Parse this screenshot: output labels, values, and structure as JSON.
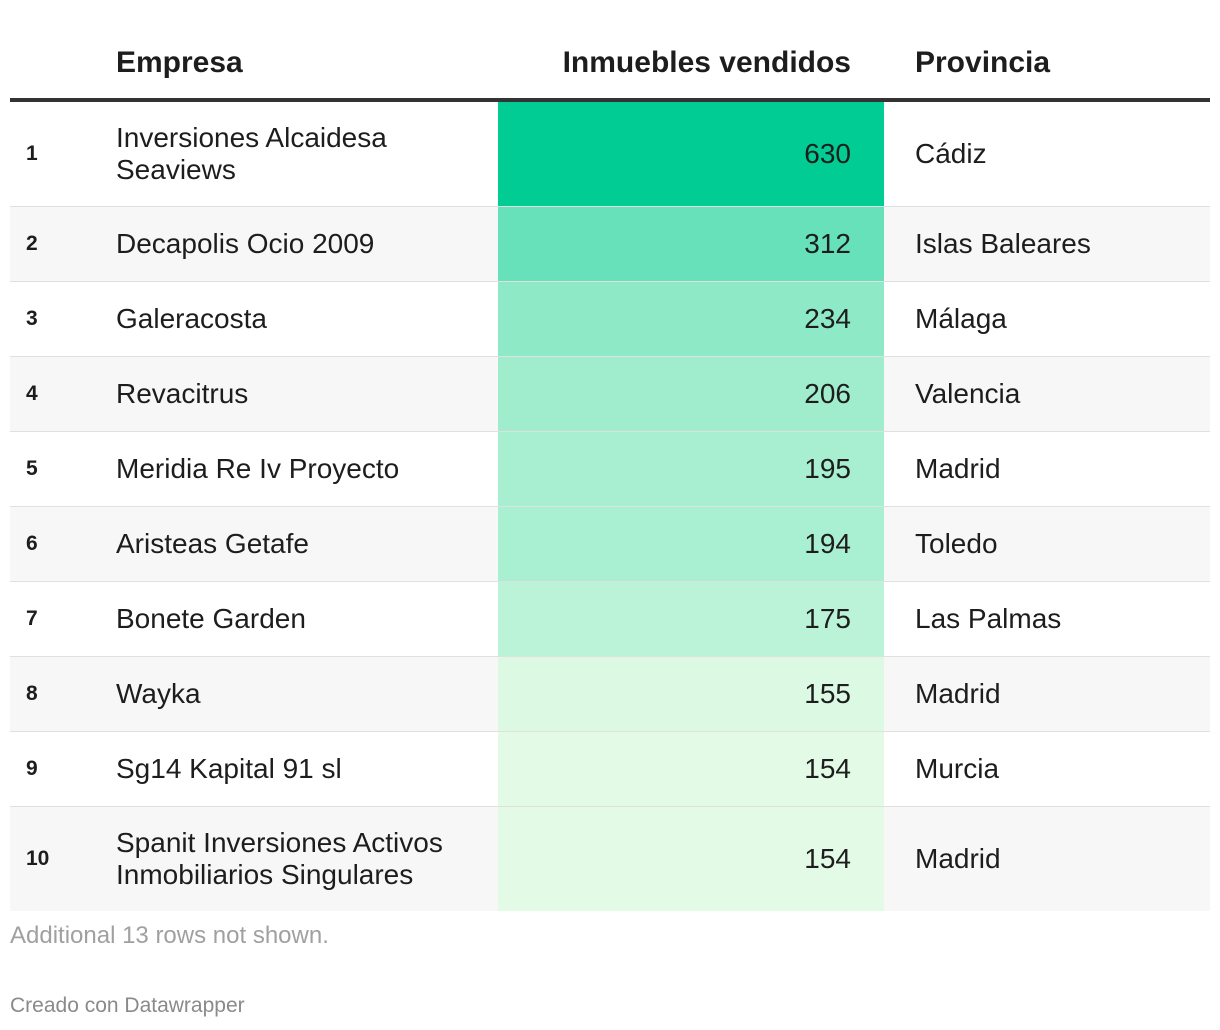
{
  "table": {
    "headers": {
      "empresa": "Empresa",
      "inmuebles": "Inmuebles vendidos",
      "provincia": "Provincia"
    },
    "rows": [
      {
        "rank": "1",
        "empresa": "Inversiones Alcaidesa Seaviews",
        "value": 630,
        "provincia": "Cádiz"
      },
      {
        "rank": "2",
        "empresa": "Decapolis Ocio 2009",
        "value": 312,
        "provincia": "Islas Baleares"
      },
      {
        "rank": "3",
        "empresa": "Galeracosta",
        "value": 234,
        "provincia": "Málaga"
      },
      {
        "rank": "4",
        "empresa": "Revacitrus",
        "value": 206,
        "provincia": "Valencia"
      },
      {
        "rank": "5",
        "empresa": "Meridia Re Iv Proyecto",
        "value": 195,
        "provincia": "Madrid"
      },
      {
        "rank": "6",
        "empresa": "Aristeas Getafe",
        "value": 194,
        "provincia": "Toledo"
      },
      {
        "rank": "7",
        "empresa": "Bonete Garden",
        "value": 175,
        "provincia": "Las Palmas"
      },
      {
        "rank": "8",
        "empresa": "Wayka",
        "value": 155,
        "provincia": "Madrid"
      },
      {
        "rank": "9",
        "empresa": "Sg14 Kapital 91 sl",
        "value": 154,
        "provincia": "Murcia"
      },
      {
        "rank": "10",
        "empresa": "Spanit Inversiones Activos Inmobiliarios Singulares",
        "value": 154,
        "provincia": "Madrid"
      }
    ]
  },
  "footnote": "Additional 13 rows not shown.",
  "credit": "Creado con Datawrapper",
  "colors": {
    "heat_high": "#00cc94",
    "heat_low": "#e3fbe6",
    "header_rule": "#333333",
    "alt_row": "#f7f7f7"
  },
  "chart_data": {
    "type": "table",
    "columns": [
      "Empresa",
      "Inmuebles vendidos",
      "Provincia"
    ],
    "heatmap_column": "Inmuebles vendidos",
    "rows": [
      [
        "Inversiones Alcaidesa Seaviews",
        630,
        "Cádiz"
      ],
      [
        "Decapolis Ocio 2009",
        312,
        "Islas Baleares"
      ],
      [
        "Galeracosta",
        234,
        "Málaga"
      ],
      [
        "Revacitrus",
        206,
        "Valencia"
      ],
      [
        "Meridia Re Iv Proyecto",
        195,
        "Madrid"
      ],
      [
        "Aristeas Getafe",
        194,
        "Toledo"
      ],
      [
        "Bonete Garden",
        175,
        "Las Palmas"
      ],
      [
        "Wayka",
        155,
        "Madrid"
      ],
      [
        "Sg14 Kapital 91 sl",
        154,
        "Murcia"
      ],
      [
        "Spanit Inversiones Activos Inmobiliarios Singulares",
        154,
        "Madrid"
      ]
    ]
  }
}
